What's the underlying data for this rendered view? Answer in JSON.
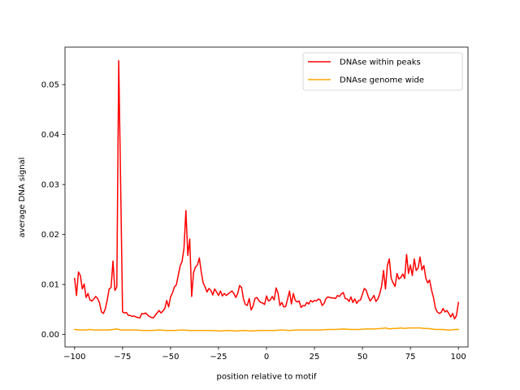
{
  "chart_data": {
    "type": "line",
    "title": "",
    "xlabel": "position relative to motif",
    "ylabel": "average DNA signal",
    "xlim": [
      -105,
      105
    ],
    "ylim": [
      -0.0025,
      0.0575
    ],
    "xticks": [
      -100,
      -75,
      -50,
      -25,
      0,
      25,
      50,
      75,
      100
    ],
    "xtick_labels": [
      "−100",
      "−75",
      "−50",
      "−25",
      "0",
      "25",
      "50",
      "75",
      "100"
    ],
    "yticks": [
      0.0,
      0.01,
      0.02,
      0.03,
      0.04,
      0.05
    ],
    "ytick_labels": [
      "0.00",
      "0.01",
      "0.02",
      "0.03",
      "0.04",
      "0.05"
    ],
    "grid": false,
    "legend_position": "top-right",
    "series": [
      {
        "name": "DNAse within peaks",
        "color": "#ff0000",
        "points": [
          [
            -100,
            0.0112
          ],
          [
            -99,
            0.0078
          ],
          [
            -98,
            0.0125
          ],
          [
            -97,
            0.0118
          ],
          [
            -96,
            0.0091
          ],
          [
            -95,
            0.0101
          ],
          [
            -94,
            0.0074
          ],
          [
            -93,
            0.0082
          ],
          [
            -92,
            0.0069
          ],
          [
            -91,
            0.0067
          ],
          [
            -90,
            0.0071
          ],
          [
            -89,
            0.0076
          ],
          [
            -88,
            0.0072
          ],
          [
            -87,
            0.0063
          ],
          [
            -86,
            0.0045
          ],
          [
            -85,
            0.0042
          ],
          [
            -84,
            0.0051
          ],
          [
            -83,
            0.0069
          ],
          [
            -82,
            0.0091
          ],
          [
            -81,
            0.0094
          ],
          [
            -80,
            0.0147
          ],
          [
            -79,
            0.0088
          ],
          [
            -78,
            0.0095
          ],
          [
            -77,
            0.0548
          ],
          [
            -76,
            0.03
          ],
          [
            -75,
            0.0045
          ],
          [
            -74,
            0.0043
          ],
          [
            -73,
            0.0044
          ],
          [
            -72,
            0.0038
          ],
          [
            -71,
            0.0038
          ],
          [
            -70,
            0.0036
          ],
          [
            -69,
            0.0037
          ],
          [
            -68,
            0.0035
          ],
          [
            -67,
            0.0034
          ],
          [
            -66,
            0.0033
          ],
          [
            -65,
            0.0042
          ],
          [
            -64,
            0.0041
          ],
          [
            -63,
            0.0043
          ],
          [
            -62,
            0.0039
          ],
          [
            -61,
            0.0036
          ],
          [
            -60,
            0.0034
          ],
          [
            -59,
            0.0033
          ],
          [
            -58,
            0.0038
          ],
          [
            -57,
            0.0043
          ],
          [
            -56,
            0.0048
          ],
          [
            -55,
            0.0043
          ],
          [
            -54,
            0.0047
          ],
          [
            -53,
            0.0052
          ],
          [
            -52,
            0.0068
          ],
          [
            -51,
            0.0055
          ],
          [
            -50,
            0.0075
          ],
          [
            -49,
            0.0083
          ],
          [
            -48,
            0.0095
          ],
          [
            -47,
            0.0099
          ],
          [
            -46,
            0.0118
          ],
          [
            -45,
            0.0137
          ],
          [
            -44,
            0.0146
          ],
          [
            -43,
            0.0172
          ],
          [
            -42,
            0.0248
          ],
          [
            -41,
            0.0158
          ],
          [
            -40,
            0.0191
          ],
          [
            -39,
            0.0076
          ],
          [
            -38,
            0.0124
          ],
          [
            -37,
            0.0135
          ],
          [
            -36,
            0.0139
          ],
          [
            -35,
            0.0153
          ],
          [
            -34,
            0.0125
          ],
          [
            -33,
            0.0103
          ],
          [
            -32,
            0.0095
          ],
          [
            -31,
            0.0085
          ],
          [
            -30,
            0.0092
          ],
          [
            -29,
            0.0088
          ],
          [
            -28,
            0.0079
          ],
          [
            -27,
            0.0091
          ],
          [
            -26,
            0.0085
          ],
          [
            -25,
            0.0078
          ],
          [
            -24,
            0.0087
          ],
          [
            -23,
            0.0077
          ],
          [
            -22,
            0.0082
          ],
          [
            -21,
            0.0078
          ],
          [
            -20,
            0.0081
          ],
          [
            -19,
            0.0084
          ],
          [
            -18,
            0.0087
          ],
          [
            -17,
            0.0082
          ],
          [
            -16,
            0.0074
          ],
          [
            -15,
            0.0082
          ],
          [
            -14,
            0.0098
          ],
          [
            -13,
            0.0094
          ],
          [
            -12,
            0.0071
          ],
          [
            -11,
            0.006
          ],
          [
            -10,
            0.0058
          ],
          [
            -9,
            0.0072
          ],
          [
            -8,
            0.0049
          ],
          [
            -7,
            0.0057
          ],
          [
            -6,
            0.0072
          ],
          [
            -5,
            0.0074
          ],
          [
            -4,
            0.0068
          ],
          [
            -3,
            0.0064
          ],
          [
            -2,
            0.0063
          ],
          [
            -1,
            0.006
          ],
          [
            0,
            0.0077
          ],
          [
            1,
            0.0067
          ],
          [
            2,
            0.0069
          ],
          [
            3,
            0.0076
          ],
          [
            4,
            0.0069
          ],
          [
            5,
            0.0093
          ],
          [
            6,
            0.0083
          ],
          [
            7,
            0.0058
          ],
          [
            8,
            0.0064
          ],
          [
            9,
            0.0055
          ],
          [
            10,
            0.0056
          ],
          [
            11,
            0.0071
          ],
          [
            12,
            0.0087
          ],
          [
            13,
            0.0061
          ],
          [
            14,
            0.0082
          ],
          [
            15,
            0.0068
          ],
          [
            16,
            0.0065
          ],
          [
            17,
            0.0067
          ],
          [
            18,
            0.0054
          ],
          [
            19,
            0.0058
          ],
          [
            20,
            0.0057
          ],
          [
            21,
            0.0064
          ],
          [
            22,
            0.0061
          ],
          [
            23,
            0.0068
          ],
          [
            24,
            0.0065
          ],
          [
            25,
            0.0068
          ],
          [
            26,
            0.0067
          ],
          [
            27,
            0.0071
          ],
          [
            28,
            0.0069
          ],
          [
            29,
            0.0058
          ],
          [
            30,
            0.0062
          ],
          [
            31,
            0.0072
          ],
          [
            32,
            0.0075
          ],
          [
            33,
            0.0074
          ],
          [
            34,
            0.0073
          ],
          [
            35,
            0.0073
          ],
          [
            36,
            0.0072
          ],
          [
            37,
            0.0078
          ],
          [
            38,
            0.0076
          ],
          [
            39,
            0.0081
          ],
          [
            40,
            0.0084
          ],
          [
            41,
            0.0072
          ],
          [
            42,
            0.0071
          ],
          [
            43,
            0.0066
          ],
          [
            44,
            0.0075
          ],
          [
            45,
            0.0064
          ],
          [
            46,
            0.0071
          ],
          [
            47,
            0.0062
          ],
          [
            48,
            0.0068
          ],
          [
            49,
            0.0069
          ],
          [
            50,
            0.0081
          ],
          [
            51,
            0.0092
          ],
          [
            52,
            0.0088
          ],
          [
            53,
            0.0076
          ],
          [
            54,
            0.0067
          ],
          [
            55,
            0.0072
          ],
          [
            56,
            0.0078
          ],
          [
            57,
            0.0066
          ],
          [
            58,
            0.0071
          ],
          [
            59,
            0.0081
          ],
          [
            60,
            0.0097
          ],
          [
            61,
            0.0128
          ],
          [
            62,
            0.0091
          ],
          [
            63,
            0.0138
          ],
          [
            64,
            0.0151
          ],
          [
            65,
            0.0112
          ],
          [
            66,
            0.0103
          ],
          [
            67,
            0.0096
          ],
          [
            68,
            0.0122
          ],
          [
            69,
            0.0111
          ],
          [
            70,
            0.0114
          ],
          [
            71,
            0.0121
          ],
          [
            72,
            0.0112
          ],
          [
            73,
            0.016
          ],
          [
            74,
            0.0122
          ],
          [
            75,
            0.0139
          ],
          [
            76,
            0.0118
          ],
          [
            77,
            0.0151
          ],
          [
            78,
            0.0128
          ],
          [
            79,
            0.0133
          ],
          [
            80,
            0.0155
          ],
          [
            81,
            0.0129
          ],
          [
            82,
            0.0138
          ],
          [
            83,
            0.0113
          ],
          [
            84,
            0.0103
          ],
          [
            85,
            0.0109
          ],
          [
            86,
            0.0089
          ],
          [
            87,
            0.0074
          ],
          [
            88,
            0.0053
          ],
          [
            89,
            0.0045
          ],
          [
            90,
            0.0042
          ],
          [
            91,
            0.0044
          ],
          [
            92,
            0.0052
          ],
          [
            93,
            0.0045
          ],
          [
            94,
            0.0048
          ],
          [
            95,
            0.0042
          ],
          [
            96,
            0.0035
          ],
          [
            97,
            0.0042
          ],
          [
            98,
            0.0031
          ],
          [
            99,
            0.0038
          ],
          [
            100,
            0.0064
          ]
        ]
      },
      {
        "name": "DNAse genome wide",
        "color": "#ffa500",
        "points": [
          [
            -100,
            0.001
          ],
          [
            -97,
            0.0009
          ],
          [
            -94,
            0.0009
          ],
          [
            -92,
            0.001
          ],
          [
            -90,
            0.0009
          ],
          [
            -86,
            0.0009
          ],
          [
            -82,
            0.0009
          ],
          [
            -78,
            0.0011
          ],
          [
            -76,
            0.0009
          ],
          [
            -72,
            0.0009
          ],
          [
            -68,
            0.0009
          ],
          [
            -64,
            0.0008
          ],
          [
            -60,
            0.0008
          ],
          [
            -56,
            0.0009
          ],
          [
            -52,
            0.0008
          ],
          [
            -48,
            0.0008
          ],
          [
            -44,
            0.0009
          ],
          [
            -40,
            0.0008
          ],
          [
            -36,
            0.0008
          ],
          [
            -32,
            0.0008
          ],
          [
            -28,
            0.0008
          ],
          [
            -24,
            0.0007
          ],
          [
            -20,
            0.0008
          ],
          [
            -16,
            0.0007
          ],
          [
            -12,
            0.0008
          ],
          [
            -8,
            0.0007
          ],
          [
            -4,
            0.0008
          ],
          [
            0,
            0.0008
          ],
          [
            4,
            0.0008
          ],
          [
            8,
            0.0009
          ],
          [
            12,
            0.0008
          ],
          [
            16,
            0.0009
          ],
          [
            20,
            0.0009
          ],
          [
            24,
            0.0009
          ],
          [
            28,
            0.0009
          ],
          [
            32,
            0.001
          ],
          [
            36,
            0.001
          ],
          [
            40,
            0.0011
          ],
          [
            44,
            0.001
          ],
          [
            48,
            0.001
          ],
          [
            52,
            0.0011
          ],
          [
            56,
            0.0011
          ],
          [
            60,
            0.0012
          ],
          [
            62,
            0.0013
          ],
          [
            64,
            0.0011
          ],
          [
            66,
            0.0012
          ],
          [
            68,
            0.0012
          ],
          [
            70,
            0.0013
          ],
          [
            72,
            0.0012
          ],
          [
            74,
            0.0013
          ],
          [
            76,
            0.0013
          ],
          [
            78,
            0.0013
          ],
          [
            80,
            0.0013
          ],
          [
            82,
            0.0012
          ],
          [
            84,
            0.0012
          ],
          [
            86,
            0.0011
          ],
          [
            88,
            0.001
          ],
          [
            90,
            0.001
          ],
          [
            92,
            0.001
          ],
          [
            94,
            0.0009
          ],
          [
            96,
            0.0009
          ],
          [
            98,
            0.001
          ],
          [
            100,
            0.001
          ]
        ]
      }
    ]
  }
}
